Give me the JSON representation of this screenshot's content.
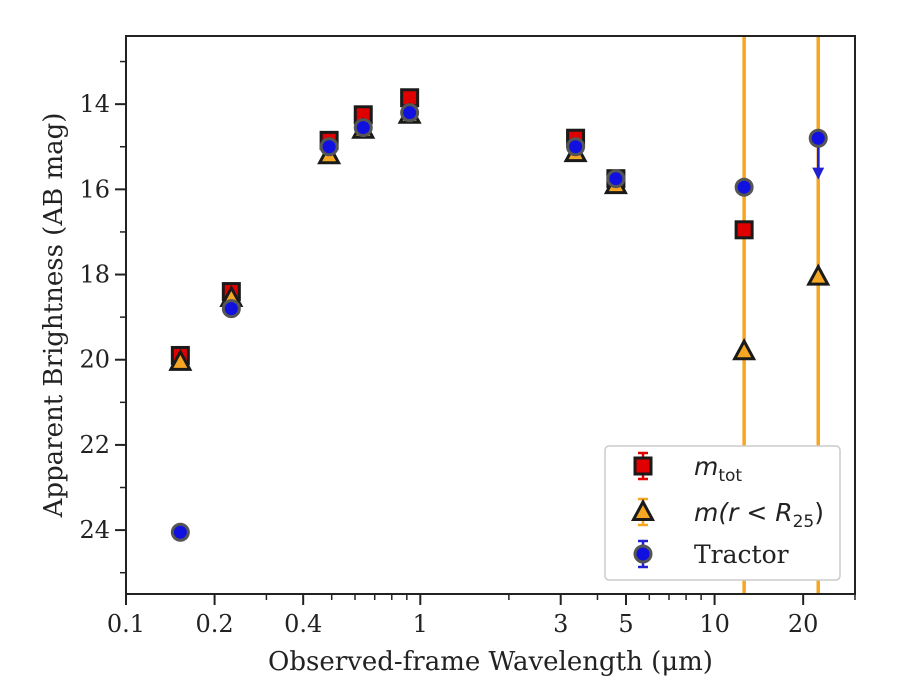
{
  "chart_data": {
    "type": "scatter",
    "xlabel": "Observed-frame Wavelength (μm)",
    "ylabel": "Apparent Brightness (AB mag)",
    "x_scale": "log",
    "xlim": [
      0.1,
      30
    ],
    "ylim": [
      25.5,
      12.4
    ],
    "y_inverted": true,
    "x_ticks": [
      {
        "value": 0.1,
        "label": "0.1"
      },
      {
        "value": 0.2,
        "label": "0.2"
      },
      {
        "value": 0.4,
        "label": "0.4"
      },
      {
        "value": 1,
        "label": "1"
      },
      {
        "value": 3,
        "label": "3"
      },
      {
        "value": 5,
        "label": "5"
      },
      {
        "value": 10,
        "label": "10"
      },
      {
        "value": 20,
        "label": "20"
      }
    ],
    "y_ticks": [
      {
        "value": 14,
        "label": "14"
      },
      {
        "value": 16,
        "label": "16"
      },
      {
        "value": 18,
        "label": "18"
      },
      {
        "value": 20,
        "label": "20"
      },
      {
        "value": 22,
        "label": "22"
      },
      {
        "value": 24,
        "label": "24"
      }
    ],
    "vertical_lines": [
      {
        "x": 12.6,
        "color": "#f5a623"
      },
      {
        "x": 22.5,
        "color": "#f5a623"
      }
    ],
    "series": [
      {
        "name": "m_tot",
        "label_main": "m",
        "label_sub": "tot",
        "marker": "square",
        "face_color": "#e00000",
        "edge_color": "#1a1a1a",
        "points": [
          {
            "x": 0.153,
            "y": 19.9
          },
          {
            "x": 0.228,
            "y": 18.4
          },
          {
            "x": 0.49,
            "y": 14.85
          },
          {
            "x": 0.64,
            "y": 14.25
          },
          {
            "x": 0.92,
            "y": 13.85
          },
          {
            "x": 3.37,
            "y": 14.8
          },
          {
            "x": 4.62,
            "y": 15.75
          },
          {
            "x": 12.6,
            "y": 16.95
          }
        ]
      },
      {
        "name": "m(r<R_25)",
        "label_main": "m(r < R",
        "label_sub": "25",
        "label_end": ")",
        "marker": "triangle",
        "face_color": "#f5a623",
        "edge_color": "#1a1a1a",
        "points": [
          {
            "x": 0.153,
            "y": 20.05
          },
          {
            "x": 0.228,
            "y": 18.55
          },
          {
            "x": 0.49,
            "y": 15.2
          },
          {
            "x": 0.64,
            "y": 14.6
          },
          {
            "x": 0.92,
            "y": 14.25
          },
          {
            "x": 3.37,
            "y": 15.15
          },
          {
            "x": 4.62,
            "y": 15.9
          },
          {
            "x": 12.6,
            "y": 19.8
          },
          {
            "x": 22.5,
            "y": 18.05
          }
        ]
      },
      {
        "name": "Tractor",
        "label_main": "Tractor",
        "marker": "circle",
        "face_color": "#1010e0",
        "edge_color": "#555555",
        "points": [
          {
            "x": 0.153,
            "y": 24.05
          },
          {
            "x": 0.228,
            "y": 18.8
          },
          {
            "x": 0.49,
            "y": 15.0
          },
          {
            "x": 0.64,
            "y": 14.55
          },
          {
            "x": 0.92,
            "y": 14.2
          },
          {
            "x": 3.37,
            "y": 15.0
          },
          {
            "x": 4.62,
            "y": 15.75
          },
          {
            "x": 12.6,
            "y": 15.95
          },
          {
            "x": 22.5,
            "y": 14.8,
            "upper_limit_to": 15.7
          }
        ]
      }
    ],
    "legend_position": "lower-right"
  }
}
